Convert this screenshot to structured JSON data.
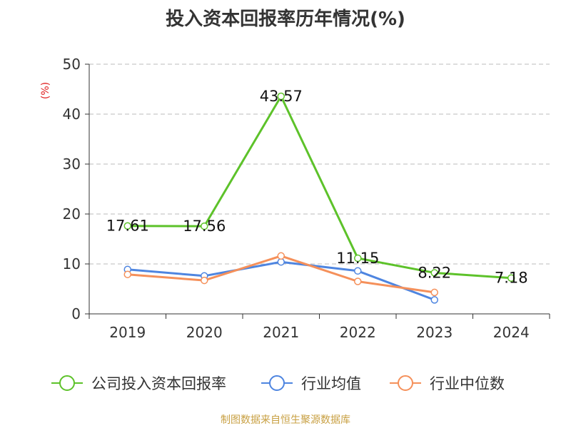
{
  "chart_data": {
    "type": "line",
    "title": "投入资本回报率历年情况(%)",
    "ylabel": "(%)",
    "categories": [
      "2019",
      "2020",
      "2021",
      "2022",
      "2023",
      "2024"
    ],
    "ylim": [
      0,
      50
    ],
    "yticks": [
      0,
      10,
      20,
      30,
      40,
      50
    ],
    "grid": true,
    "legend_position": "bottom",
    "series": [
      {
        "name": "公司投入资本回报率",
        "color": "#5dc22a",
        "values": [
          17.61,
          17.56,
          43.57,
          11.15,
          8.22,
          7.18
        ],
        "labels": [
          "17.61",
          "17.56",
          "43.57",
          "11.15",
          "8.22",
          "7.18"
        ]
      },
      {
        "name": "行业均值",
        "color": "#4e85e0",
        "values": [
          8.9,
          7.6,
          10.4,
          8.6,
          2.8,
          null
        ]
      },
      {
        "name": "行业中位数",
        "color": "#f5905a",
        "values": [
          7.9,
          6.7,
          11.6,
          6.5,
          4.3,
          null
        ]
      }
    ]
  },
  "source": "制图数据来自恒生聚源数据库"
}
